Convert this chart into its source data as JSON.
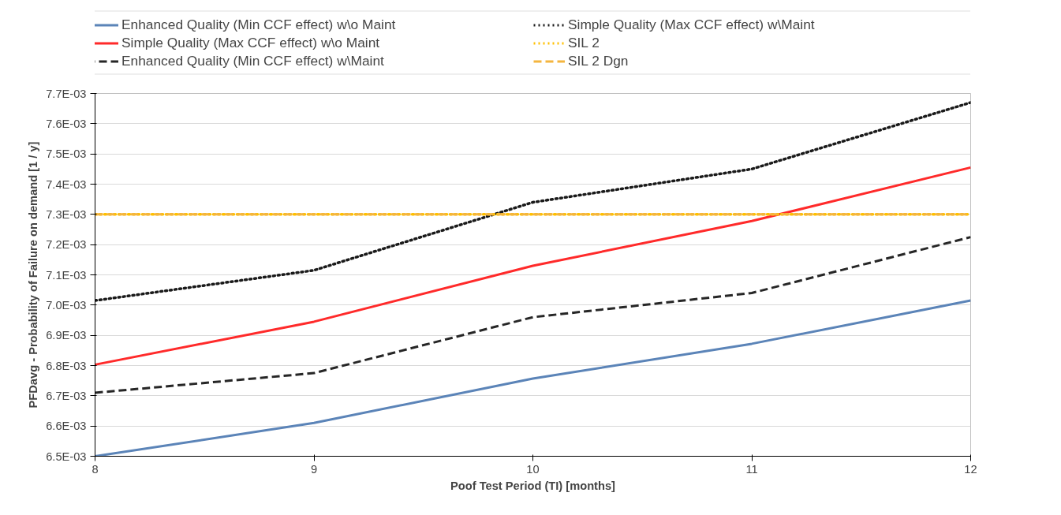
{
  "chart_data": {
    "type": "line",
    "xlabel": "Poof Test Period (TI) [months]",
    "ylabel": "PFDavg - Probability of Failure on demand [1 / y]",
    "x": [
      8,
      9,
      10,
      11,
      12
    ],
    "series": [
      {
        "name": "Enhanced Quality (Min CCF effect) w\\o Maint",
        "color": "#5b84b8",
        "line_style": "solid",
        "values": [
          0.0065,
          0.00661,
          0.006757,
          0.006872,
          0.007015
        ]
      },
      {
        "name": "Simple Quality (Max CCF effect) w\\o Maint",
        "color": "#ff2a2a",
        "line_style": "solid",
        "values": [
          0.006803,
          0.006945,
          0.00713,
          0.007278,
          0.007455
        ]
      },
      {
        "name": "Enhanced Quality (Min CCF effect) w\\Maint",
        "color": "#262626",
        "line_style": "dashed",
        "values": [
          0.00671,
          0.006775,
          0.00696,
          0.00704,
          0.007225
        ]
      },
      {
        "name": "Simple Quality (Max CCF effect) w\\Maint",
        "color": "#1a1a1a",
        "line_style": "dotted",
        "values": [
          0.007015,
          0.007115,
          0.00734,
          0.00745,
          0.00767
        ]
      },
      {
        "name": "SIL 2",
        "color": "#ffc000",
        "line_style": "dotted",
        "values": [
          0.0073,
          0.0073,
          0.0073,
          0.0073,
          0.0073
        ]
      },
      {
        "name": "SIL 2 Dgn",
        "color": "#f4b53f",
        "line_style": "dashed",
        "values": [
          0.0073,
          0.0073,
          0.0073,
          0.0073,
          0.0073
        ]
      }
    ],
    "xlim": [
      8,
      12
    ],
    "xticks": [
      8,
      9,
      10,
      11,
      12
    ],
    "ylim": [
      0.0065,
      0.0077
    ],
    "yticks": [
      {
        "value": 0.0065,
        "label": "6.5E-03"
      },
      {
        "value": 0.0066,
        "label": "6.6E-03"
      },
      {
        "value": 0.0067,
        "label": "6.7E-03"
      },
      {
        "value": 0.0068,
        "label": "6.8E-03"
      },
      {
        "value": 0.0069,
        "label": "6.9E-03"
      },
      {
        "value": 0.007,
        "label": "7.0E-03"
      },
      {
        "value": 0.0071,
        "label": "7.1E-03"
      },
      {
        "value": 0.0072,
        "label": "7.2E-03"
      },
      {
        "value": 0.0073,
        "label": "7.3E-03"
      },
      {
        "value": 0.0074,
        "label": "7.4E-03"
      },
      {
        "value": 0.0075,
        "label": "7.5E-03"
      },
      {
        "value": 0.0076,
        "label": "7.6E-03"
      },
      {
        "value": 0.0077,
        "label": "7.7E-03"
      }
    ],
    "grid": "y",
    "legend": "top",
    "marker": "none"
  }
}
